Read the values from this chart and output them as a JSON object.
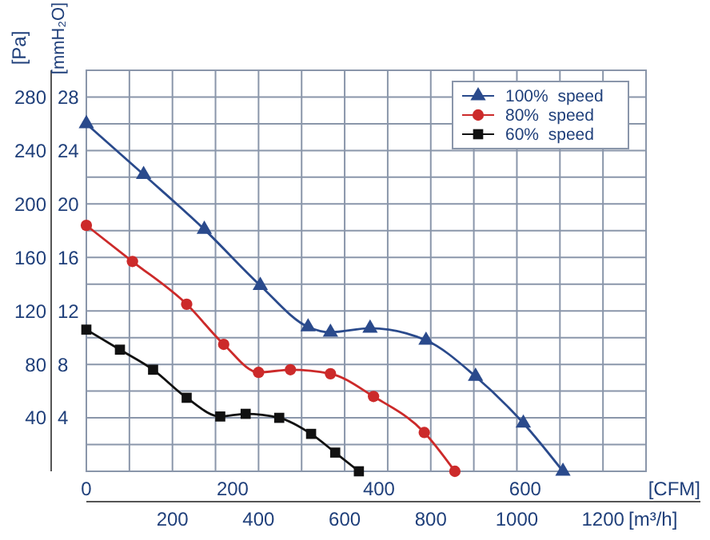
{
  "chart_data": {
    "type": "line",
    "xlabel": "[m³/h]",
    "x2label": "[CFM]",
    "ylabel": "[Pa]",
    "y2label": "[mmH₂O]",
    "xlim": [
      0,
      1300
    ],
    "xticks": [
      200,
      400,
      600,
      800,
      1000,
      1200
    ],
    "x2lim": [
      0,
      765.2
    ],
    "x2ticks": [
      0,
      200,
      400,
      600
    ],
    "ylim": [
      0,
      300
    ],
    "yticks": [
      40,
      80,
      120,
      160,
      200,
      240,
      280
    ],
    "y2lim": [
      0,
      30
    ],
    "y2ticks": [
      4,
      8,
      12,
      16,
      20,
      24,
      28
    ],
    "grid": true,
    "legend": "top right",
    "line_style": "solid",
    "series": [
      {
        "name": "100%  speed",
        "color": "#2a4a8c",
        "marker": "triangle",
        "x": [
          0,
          133,
          274,
          404,
          515,
          567,
          659,
          789,
          904,
          1015,
          1107
        ],
        "values": [
          260,
          222,
          181,
          139,
          108,
          104,
          107,
          98,
          71,
          36,
          0
        ]
      },
      {
        "name": "80%  speed",
        "color": "#cc2a2a",
        "marker": "circle",
        "x": [
          0,
          107,
          233,
          319,
          400,
          474,
          567,
          667,
          785,
          856
        ],
        "values": [
          184,
          157,
          125,
          95,
          74,
          76,
          73,
          56,
          29,
          0
        ]
      },
      {
        "name": "60%  speed",
        "color": "#111111",
        "marker": "square",
        "x": [
          0,
          78,
          155,
          233,
          311,
          370,
          448,
          522,
          578,
          633
        ],
        "values": [
          106,
          91,
          76,
          55,
          41,
          43,
          40,
          28,
          14,
          0
        ]
      }
    ]
  }
}
